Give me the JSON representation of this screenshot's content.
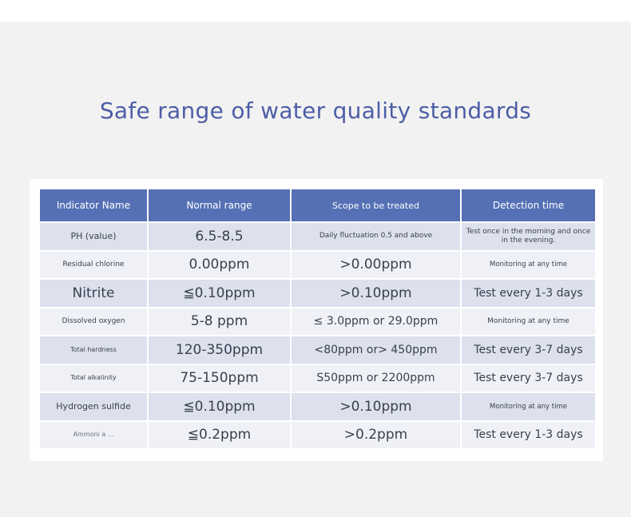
{
  "title": "Safe range of water quality standards",
  "table": {
    "headers": [
      "Indicator Name",
      "Normal range",
      "Scope to be treated",
      "Detection time"
    ],
    "rows": [
      [
        "PH (value)",
        "6.5-8.5",
        "Daily fluctuation 0.5 and above",
        "Test once in the morning and once in the evening."
      ],
      [
        "Residual chlorine",
        "0.00ppm",
        ">0.00ppm",
        "Monitoring at any time"
      ],
      [
        "Nitrite",
        "≦0.10ppm",
        ">0.10ppm",
        "Test every 1-3 days"
      ],
      [
        "Dissolved oxygen",
        "5-8 ppm",
        "≤ 3.0ppm or 29.0ppm",
        "Monitoring at any time"
      ],
      [
        "Total hardness",
        "120-350ppm",
        "<80ppm or> 450ppm",
        "Test every 3-7 days"
      ],
      [
        "Total alkalinity",
        "75-150ppm",
        "S50ppm or 2200ppm",
        "Test every 3-7 days"
      ],
      [
        "Hydrogen sulfide",
        "≦0.10ppm",
        ">0.10ppm",
        "Monitoring at any time"
      ],
      [
        "Ammoni a ...",
        "≦0.2ppm",
        ">0.2ppm",
        "Test every 1-3 days"
      ]
    ]
  }
}
